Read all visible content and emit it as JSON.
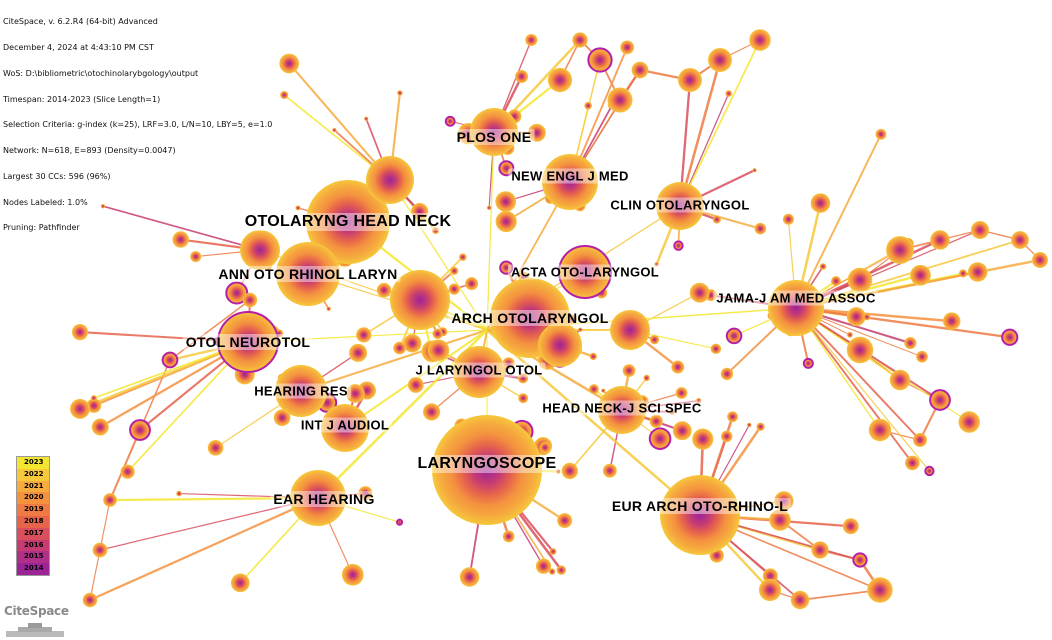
{
  "info_lines": [
    "CiteSpace, v. 6.2.R4 (64-bit) Advanced",
    "December 4, 2024 at 4:43:10 PM CST",
    "WoS: D:\\bibliometric\\otochinolarybgology\\output",
    "Timespan: 2014-2023 (Slice Length=1)",
    "Selection Criteria: g-index (k=25), LRF=3.0, L/N=10, LBY=5, e=1.0",
    "Network: N=618, E=893 (Density=0.0047)",
    "Largest 30 CCs: 596 (96%)",
    "Nodes Labeled: 1.0%",
    "Pruning: Pathfinder"
  ],
  "node_labels": [
    "OTOLARYNG HEAD NECK",
    "LARYNGOSCOPE",
    "ANN OTO RHINOL LARYN",
    "ARCH OTOLARYNGOL",
    "OTOL NEUROTOL",
    "ACTA OTO-LARYNGOL",
    "JAMA-J AM MED ASSOC",
    "PLOS ONE",
    "NEW ENGL J MED",
    "CLIN OTOLARYNGOL",
    "J LARYNGOL OTOL",
    "HEARING RES",
    "HEAD NECK-J SCI SPEC",
    "INT J AUDIOL",
    "EAR HEARING",
    "EUR ARCH OTO-RHINO-L"
  ],
  "legend": {
    "years": [
      "2023",
      "2022",
      "2021",
      "2020",
      "2019",
      "2018",
      "2017",
      "2016",
      "2015",
      "2014"
    ],
    "colors": [
      "#f3e631",
      "#f6c83a",
      "#f6ab3e",
      "#f4923f",
      "#ef7a44",
      "#e6634c",
      "#d94e5c",
      "#c63c72",
      "#b02f88",
      "#9c2498"
    ]
  },
  "logo_text": "CiteSpace"
}
